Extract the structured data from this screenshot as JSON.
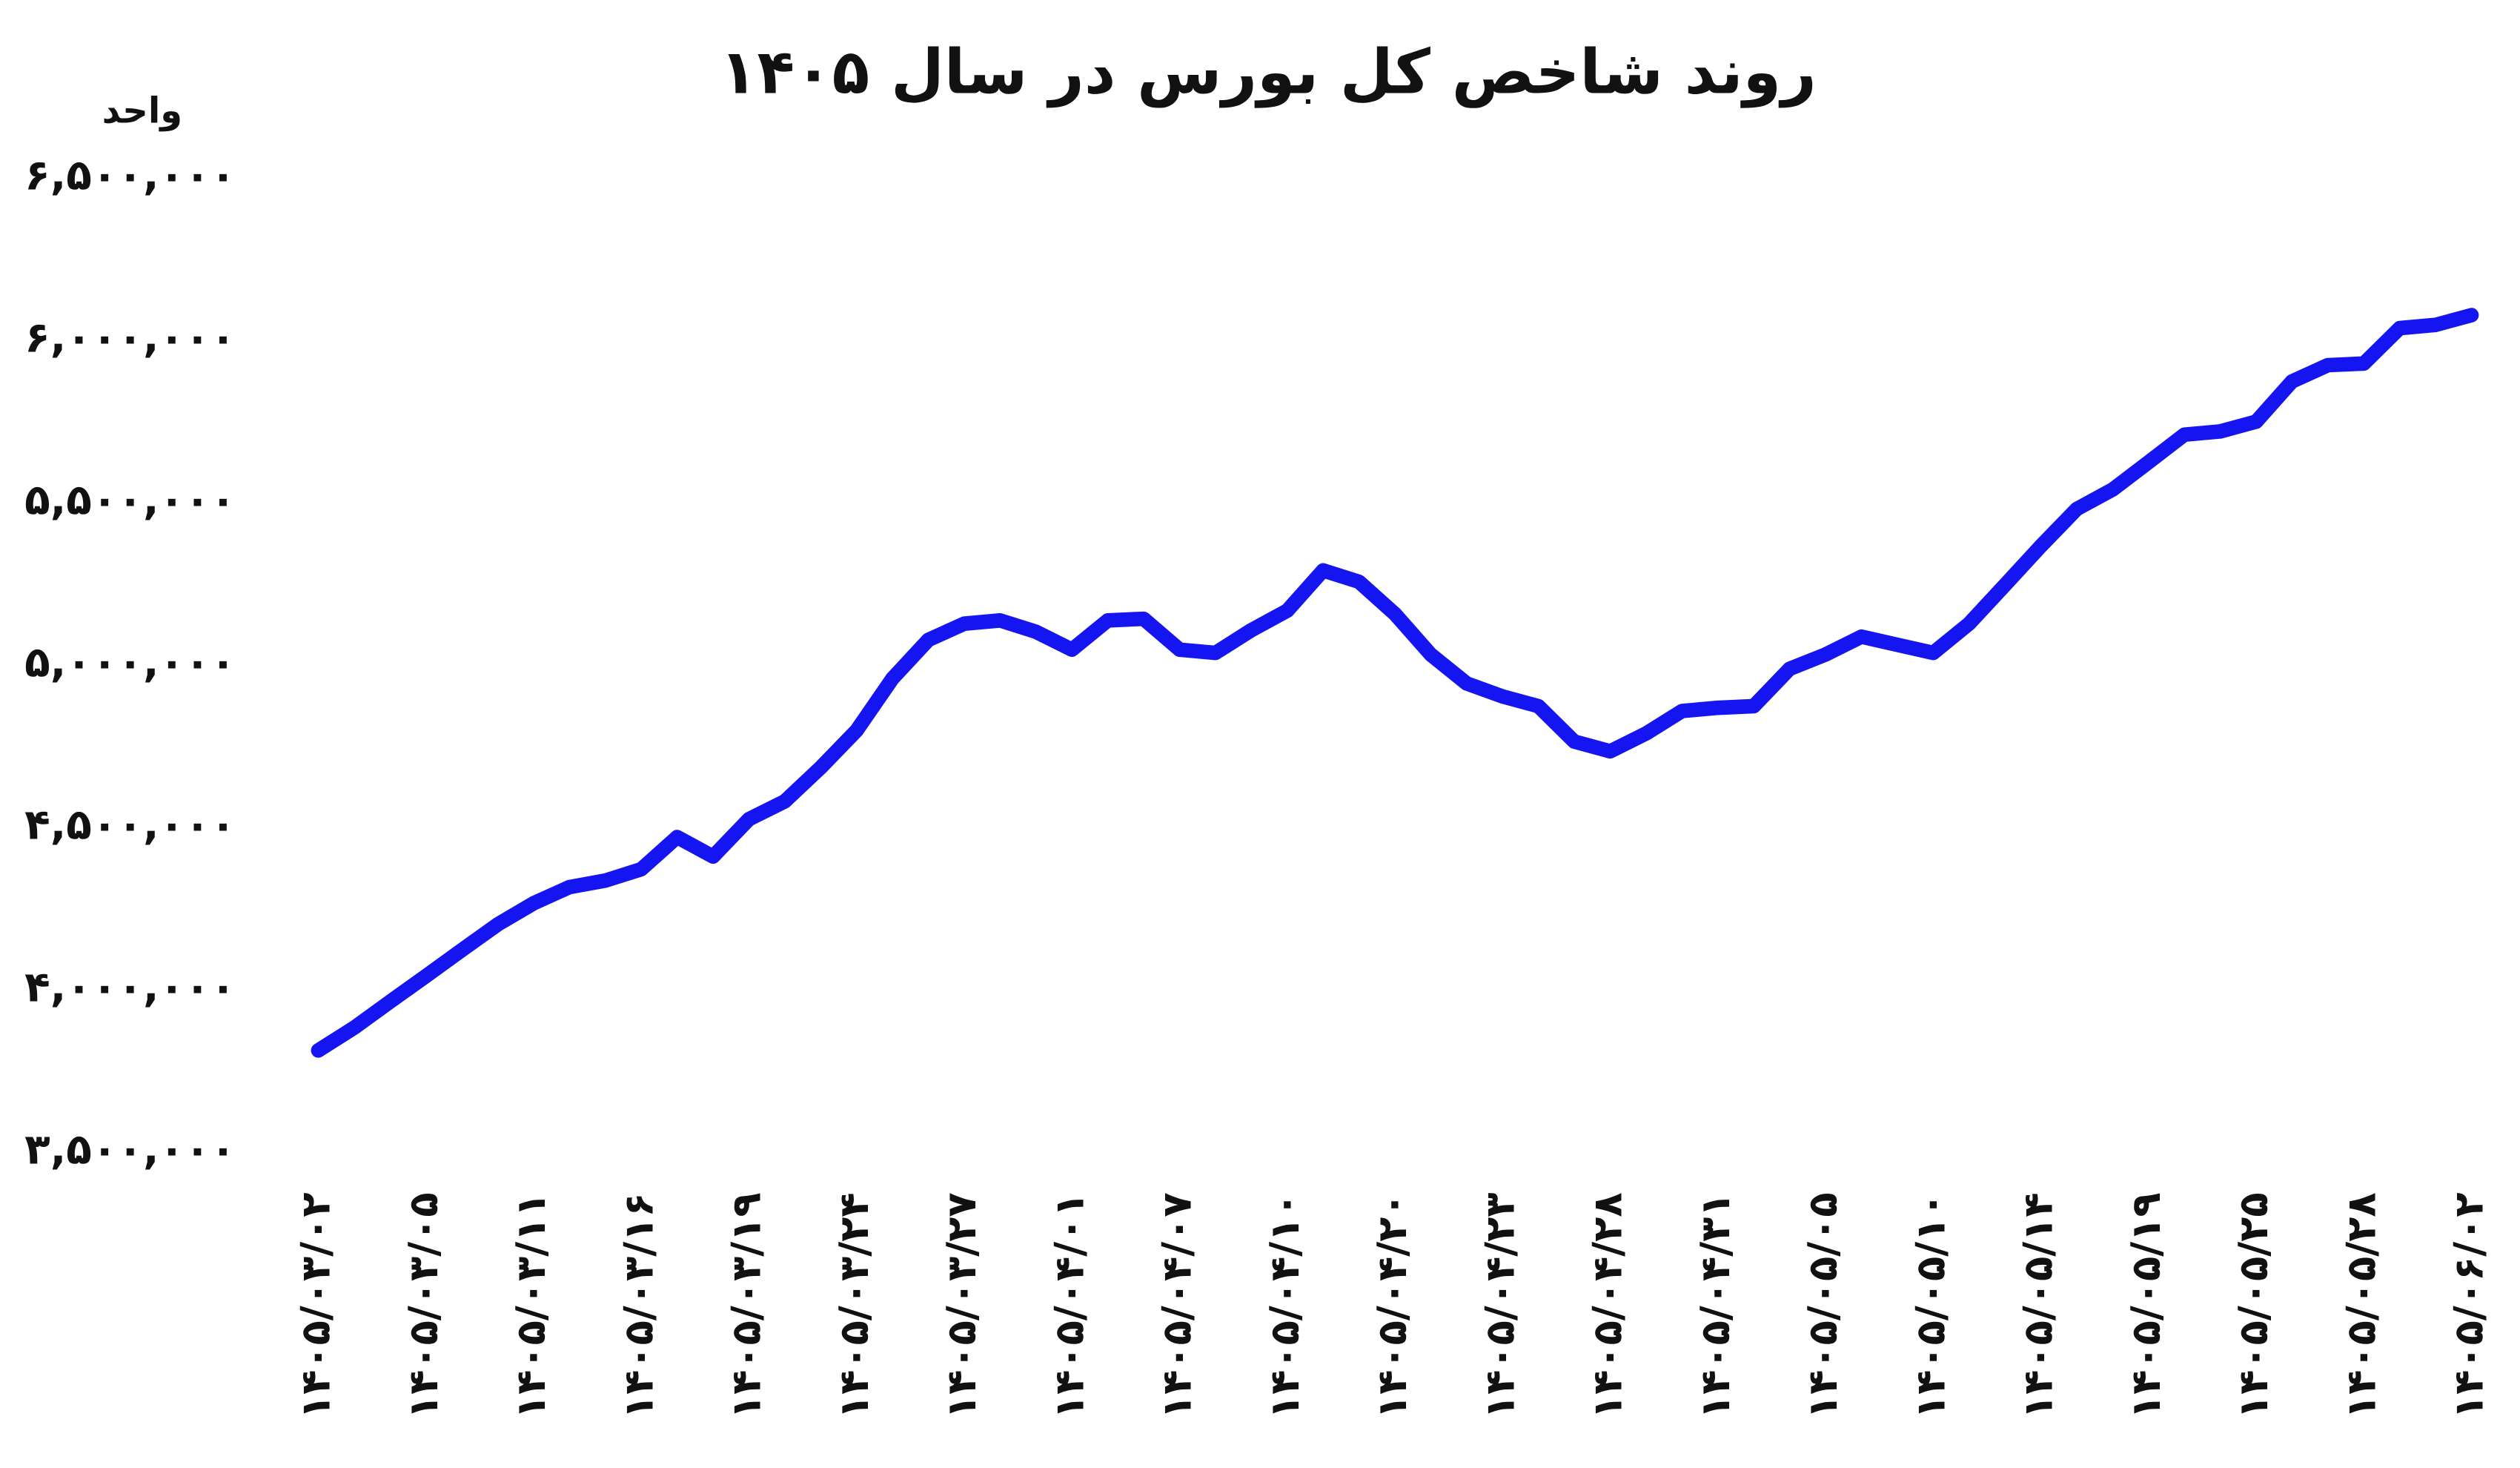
{
  "chart_data": {
    "type": "line",
    "title": "روند شاخص کل بورس در سال ۱۴۰۵",
    "y_label": "واحد",
    "color": "#1515f2",
    "categories": [
      "۱۴۰۵/۰۳/۰۲",
      null,
      null,
      "۱۴۰۵/۰۳/۰۵",
      null,
      null,
      "۱۴۰۵/۰۳/۱۱",
      null,
      null,
      "۱۴۰۵/۰۳/۱۶",
      null,
      null,
      "۱۴۰۵/۰۳/۱۹",
      null,
      null,
      "۱۴۰۵/۰۳/۲۴",
      null,
      null,
      "۱۴۰۵/۰۳/۲۷",
      null,
      null,
      "۱۴۰۵/۰۴/۰۱",
      null,
      null,
      "۱۴۰۵/۰۴/۰۷",
      null,
      null,
      "۱۴۰۵/۰۴/۱۰",
      null,
      null,
      "۱۴۰۵/۰۴/۲۰",
      null,
      null,
      "۱۴۰۵/۰۴/۲۳",
      null,
      null,
      "۱۴۰۵/۰۴/۲۸",
      null,
      null,
      "۱۴۰۵/۰۴/۳۱",
      null,
      null,
      "۱۴۰۵/۰۵/۰۵",
      null,
      null,
      "۱۴۰۵/۰۵/۱۰",
      null,
      null,
      "۱۴۰۵/۰۵/۱۴",
      null,
      null,
      "۱۴۰۵/۰۵/۱۹",
      null,
      null,
      "۱۴۰۵/۰۵/۲۵",
      null,
      null,
      "۱۴۰۵/۰۵/۲۸",
      null,
      null,
      "۱۴۰۵/۰۶/۰۲"
    ],
    "values": [
      3813000,
      3883000,
      3963000,
      4042000,
      4122000,
      4201000,
      4266000,
      4316000,
      4336000,
      4371000,
      4470000,
      4410000,
      4525000,
      4580000,
      4684000,
      4798000,
      4958000,
      5077000,
      5127000,
      5137000,
      5102000,
      5047000,
      5137000,
      5142000,
      5047000,
      5037000,
      5107000,
      5167000,
      5291000,
      5256000,
      5157000,
      5032000,
      4943000,
      4903000,
      4873000,
      4764000,
      4734000,
      4789000,
      4858000,
      4868000,
      4873000,
      4988000,
      5032000,
      5087000,
      5062000,
      5037000,
      5127000,
      5246000,
      5366000,
      5480000,
      5540000,
      5624000,
      5709000,
      5719000,
      5749000,
      5873000,
      5923000,
      5928000,
      6037000,
      6047000,
      6077000
    ],
    "ylim": [
      3500000,
      6500000
    ],
    "yticks": [
      {
        "value": 3500000,
        "label": "۳,۵۰۰,۰۰۰"
      },
      {
        "value": 4000000,
        "label": "۴,۰۰۰,۰۰۰"
      },
      {
        "value": 4500000,
        "label": "۴,۵۰۰,۰۰۰"
      },
      {
        "value": 5000000,
        "label": "۵,۰۰۰,۰۰۰"
      },
      {
        "value": 5500000,
        "label": "۵,۵۰۰,۰۰۰"
      },
      {
        "value": 6000000,
        "label": "۶,۰۰۰,۰۰۰"
      },
      {
        "value": 6500000,
        "label": "۶,۵۰۰,۰۰۰"
      }
    ],
    "grid": false
  }
}
